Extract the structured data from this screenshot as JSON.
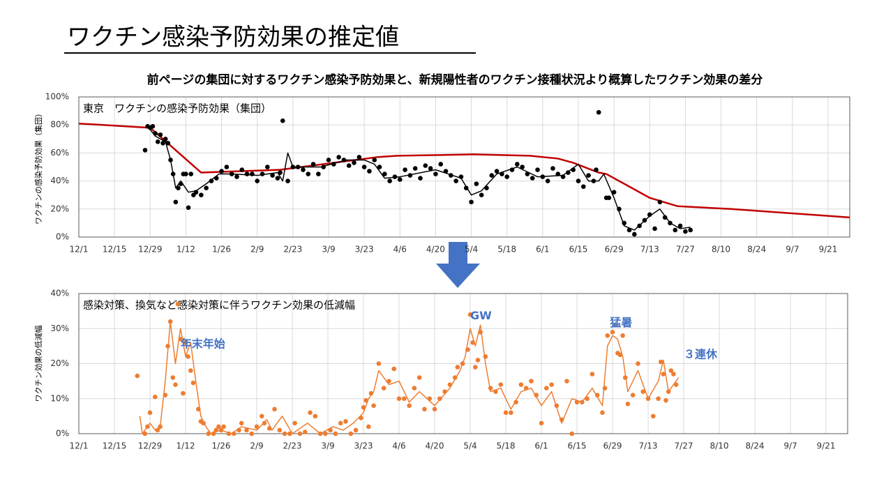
{
  "title": "ワクチン感染予防効果の推定値",
  "subtitle": "前ページの集団に対するワクチン感染予防効果と、新規陽性者のワクチン接種状況より概算したワクチン効果の差分",
  "chart_data": [
    {
      "type": "scatter",
      "title": "東京　ワクチンの感染予防効果（集団）",
      "y_label": "ワクチンの感染予防効果（集団）",
      "xlim": [
        0,
        302.5
      ],
      "xticks": [
        {
          "value": 0,
          "label": "12/1"
        },
        {
          "value": 14,
          "label": "12/15"
        },
        {
          "value": 28,
          "label": "12/29"
        },
        {
          "value": 42,
          "label": "1/12"
        },
        {
          "value": 56,
          "label": "1/26"
        },
        {
          "value": 70,
          "label": "2/9"
        },
        {
          "value": 84,
          "label": "2/23"
        },
        {
          "value": 98,
          "label": "3/9"
        },
        {
          "value": 112,
          "label": "3/23"
        },
        {
          "value": 126,
          "label": "4/6"
        },
        {
          "value": 140,
          "label": "4/20"
        },
        {
          "value": 154,
          "label": "5/4"
        },
        {
          "value": 168,
          "label": "5/18"
        },
        {
          "value": 182,
          "label": "6/1"
        },
        {
          "value": 196,
          "label": "6/15"
        },
        {
          "value": 210,
          "label": "6/29"
        },
        {
          "value": 224,
          "label": "7/13"
        },
        {
          "value": 238,
          "label": "7/27"
        },
        {
          "value": 252,
          "label": "8/10"
        },
        {
          "value": 266,
          "label": "8/24"
        },
        {
          "value": 280,
          "label": "9/7"
        },
        {
          "value": 294,
          "label": "9/21"
        }
      ],
      "ylim": [
        0,
        100
      ],
      "yticks": [
        {
          "value": 0,
          "label": "0%"
        },
        {
          "value": 20,
          "label": "20%"
        },
        {
          "value": 40,
          "label": "40%"
        },
        {
          "value": 60,
          "label": "60%"
        },
        {
          "value": 80,
          "label": "80%"
        },
        {
          "value": 100,
          "label": "100%"
        }
      ],
      "grid": true,
      "series": [
        {
          "mode": "line",
          "color": "#c00000",
          "width": 2.5,
          "x": [
            0,
            28,
            48,
            79,
            117,
            125,
            155,
            177,
            188,
            194,
            204,
            207,
            217,
            224,
            235,
            256,
            302.5
          ],
          "values": [
            81,
            78,
            46,
            48,
            57,
            58,
            59,
            58,
            56,
            53,
            46,
            45,
            35,
            28,
            22,
            20,
            14
          ]
        },
        {
          "mode": "line",
          "color": "#000000",
          "width": 1.5,
          "x": [
            27,
            30,
            34,
            36,
            38,
            40,
            43,
            46,
            50,
            55,
            60,
            70,
            78,
            80,
            82,
            84,
            95,
            105,
            112,
            116,
            120,
            126,
            140,
            150,
            154,
            158,
            164,
            172,
            180,
            190,
            196,
            200,
            204,
            206,
            210,
            214,
            218,
            224,
            228,
            232,
            236,
            240
          ],
          "values": [
            79,
            72,
            68,
            55,
            35,
            40,
            32,
            33,
            38,
            45,
            45,
            44,
            46,
            40,
            60,
            50,
            50,
            55,
            55,
            52,
            42,
            43,
            48,
            42,
            30,
            33,
            45,
            50,
            43,
            44,
            52,
            40,
            40,
            45,
            28,
            8,
            5,
            15,
            20,
            10,
            6,
            7
          ]
        },
        {
          "mode": "markers",
          "color": "#000000",
          "x": [
            26,
            27,
            28,
            29,
            30,
            31,
            32,
            33,
            34,
            35,
            36,
            37,
            38,
            39,
            40,
            41,
            42,
            43,
            44,
            45,
            46,
            48,
            50,
            52,
            54,
            56,
            58,
            60,
            62,
            64,
            66,
            68,
            70,
            72,
            74,
            76,
            78,
            79,
            80,
            82,
            84,
            86,
            88,
            90,
            92,
            94,
            96,
            98,
            100,
            102,
            104,
            106,
            108,
            110,
            112,
            114,
            116,
            118,
            120,
            122,
            124,
            126,
            128,
            130,
            132,
            134,
            136,
            138,
            140,
            142,
            144,
            146,
            148,
            150,
            152,
            154,
            156,
            158,
            160,
            162,
            164,
            166,
            168,
            170,
            172,
            174,
            176,
            178,
            180,
            182,
            184,
            186,
            188,
            190,
            192,
            194,
            196,
            198,
            200,
            202,
            203,
            204,
            207,
            208,
            210,
            212,
            214,
            216,
            218,
            220,
            222,
            224,
            226,
            228,
            230,
            232,
            234,
            236,
            238,
            240
          ],
          "values": [
            62,
            79,
            78,
            79,
            74,
            68,
            73,
            67,
            70,
            67,
            55,
            45,
            25,
            35,
            38,
            45,
            45,
            21,
            45,
            30,
            32,
            30,
            35,
            40,
            42,
            47,
            50,
            45,
            43,
            48,
            45,
            45,
            40,
            45,
            50,
            44,
            42,
            46,
            83,
            40,
            50,
            50,
            48,
            45,
            52,
            45,
            50,
            55,
            52,
            57,
            55,
            51,
            53,
            57,
            50,
            47,
            55,
            50,
            45,
            40,
            43,
            41,
            48,
            44,
            49,
            42,
            51,
            49,
            45,
            52,
            47,
            44,
            40,
            43,
            35,
            25,
            38,
            30,
            35,
            44,
            47,
            45,
            43,
            48,
            52,
            50,
            45,
            42,
            48,
            43,
            40,
            49,
            45,
            43,
            46,
            48,
            40,
            36,
            44,
            40,
            48,
            89,
            28,
            28,
            32,
            20,
            10,
            5,
            2,
            8,
            12,
            16,
            6,
            25,
            14,
            10,
            5,
            8,
            4,
            5
          ]
        }
      ]
    },
    {
      "type": "scatter",
      "title": "感染対策、換気など感染対策に伴うワクチン効果の低減幅",
      "y_label": "ワクチン効果の低減幅",
      "xlim": [
        0,
        302.5
      ],
      "xticks": [
        {
          "value": 0,
          "label": "12/1"
        },
        {
          "value": 14,
          "label": "12/15"
        },
        {
          "value": 28,
          "label": "12/29"
        },
        {
          "value": 42,
          "label": "1/12"
        },
        {
          "value": 56,
          "label": "1/26"
        },
        {
          "value": 70,
          "label": "2/9"
        },
        {
          "value": 84,
          "label": "2/23"
        },
        {
          "value": 98,
          "label": "3/9"
        },
        {
          "value": 112,
          "label": "3/23"
        },
        {
          "value": 126,
          "label": "4/6"
        },
        {
          "value": 140,
          "label": "4/20"
        },
        {
          "value": 154,
          "label": "5/4"
        },
        {
          "value": 168,
          "label": "5/18"
        },
        {
          "value": 182,
          "label": "6/1"
        },
        {
          "value": 196,
          "label": "6/15"
        },
        {
          "value": 210,
          "label": "6/29"
        },
        {
          "value": 224,
          "label": "7/13"
        },
        {
          "value": 238,
          "label": "7/27"
        },
        {
          "value": 252,
          "label": "8/10"
        },
        {
          "value": 266,
          "label": "8/24"
        },
        {
          "value": 280,
          "label": "9/7"
        },
        {
          "value": 294,
          "label": "9/21"
        }
      ],
      "ylim": [
        0,
        40
      ],
      "yticks": [
        {
          "value": 0,
          "label": "0%"
        },
        {
          "value": 10,
          "label": "10%"
        },
        {
          "value": 20,
          "label": "20%"
        },
        {
          "value": 30,
          "label": "30%"
        },
        {
          "value": 40,
          "label": "40%"
        }
      ],
      "grid": true,
      "annotations": [
        {
          "text": "年末年始",
          "x": 40,
          "y": 25.5
        },
        {
          "text": "GW",
          "x": 154,
          "y": 33.5
        },
        {
          "text": "猛暑",
          "x": 209,
          "y": 31.5
        },
        {
          "text": "３連休",
          "x": 238,
          "y": 22.5
        }
      ],
      "series": [
        {
          "mode": "line",
          "color": "#ed7d31",
          "width": 1.5,
          "x": [
            24,
            25,
            26,
            28,
            30,
            32,
            34,
            36,
            38,
            40,
            42,
            44,
            46,
            48,
            50,
            52,
            56,
            60,
            64,
            70,
            74,
            76,
            80,
            84,
            90,
            95,
            100,
            104,
            108,
            112,
            114,
            116,
            118,
            122,
            126,
            130,
            134,
            140,
            146,
            150,
            152,
            154,
            156,
            158,
            160,
            162,
            166,
            170,
            174,
            178,
            182,
            186,
            190,
            194,
            198,
            202,
            206,
            208,
            210,
            212,
            214,
            216,
            220,
            224,
            228,
            230,
            232,
            236
          ],
          "values": [
            5,
            0,
            1,
            3,
            1,
            2,
            15,
            32,
            20,
            30,
            22,
            26,
            15,
            5,
            2,
            0,
            1,
            0,
            2,
            1,
            4,
            1,
            5,
            0,
            3,
            0,
            2,
            1,
            3,
            6,
            10,
            12,
            18,
            14,
            15,
            9,
            12,
            8,
            13,
            18,
            22,
            30,
            25,
            31,
            20,
            12,
            13,
            7,
            12,
            13,
            8,
            12,
            3,
            10,
            9,
            13,
            8,
            25,
            28,
            27,
            22,
            12,
            18,
            10,
            15,
            21,
            12,
            16
          ]
        },
        {
          "mode": "markers",
          "color": "#ed7d31",
          "x": [
            23,
            26,
            27,
            28,
            30,
            31,
            32,
            34,
            35,
            36,
            37,
            38,
            39,
            40,
            41,
            42,
            43,
            44,
            45,
            47,
            48,
            49,
            51,
            53,
            54,
            55,
            56,
            57,
            59,
            61,
            63,
            64,
            66,
            68,
            70,
            72,
            73,
            75,
            77,
            79,
            81,
            83,
            85,
            87,
            89,
            91,
            93,
            95,
            97,
            99,
            101,
            103,
            105,
            107,
            109,
            111,
            112,
            113,
            114,
            115,
            116,
            118,
            120,
            122,
            124,
            126,
            128,
            130,
            132,
            134,
            136,
            138,
            140,
            142,
            144,
            146,
            148,
            149,
            151,
            153,
            154,
            155,
            156,
            157,
            158,
            160,
            162,
            164,
            166,
            168,
            170,
            172,
            174,
            176,
            178,
            180,
            182,
            184,
            186,
            188,
            190,
            192,
            194,
            196,
            198,
            200,
            202,
            204,
            206,
            207,
            208,
            210,
            211,
            212,
            213,
            214,
            215,
            216,
            218,
            220,
            222,
            224,
            226,
            228,
            229,
            230,
            231,
            232,
            233,
            234,
            235
          ],
          "values": [
            16.5,
            0,
            2,
            6,
            10.5,
            1,
            2,
            11,
            25,
            32,
            16,
            14,
            37,
            27,
            11.5,
            26,
            22,
            18,
            14.5,
            7,
            3.5,
            3,
            0,
            0,
            1,
            2,
            1,
            2,
            0,
            0,
            1,
            3,
            1,
            0,
            2,
            5,
            3,
            1.5,
            7,
            1,
            0,
            0,
            3,
            0,
            0.5,
            6,
            5,
            0,
            0,
            1,
            0,
            3,
            3.5,
            0,
            1,
            4.5,
            7.5,
            9.5,
            2,
            11.5,
            8,
            20,
            13,
            15,
            18.5,
            10,
            10,
            8,
            13,
            16,
            7,
            10,
            7,
            10,
            12,
            14,
            16,
            19,
            20,
            24,
            34,
            26,
            19,
            21,
            29,
            22,
            13,
            12,
            14,
            6,
            6,
            9,
            14,
            13,
            15,
            11,
            3,
            13,
            14,
            8,
            4,
            15,
            0,
            9,
            9,
            10,
            17,
            11,
            6,
            13,
            28,
            29,
            31,
            23,
            22.5,
            28,
            16,
            8.5,
            11,
            20,
            12,
            10,
            5,
            10,
            20.5,
            17,
            9.5,
            12,
            18,
            17,
            14
          ]
        }
      ]
    }
  ]
}
